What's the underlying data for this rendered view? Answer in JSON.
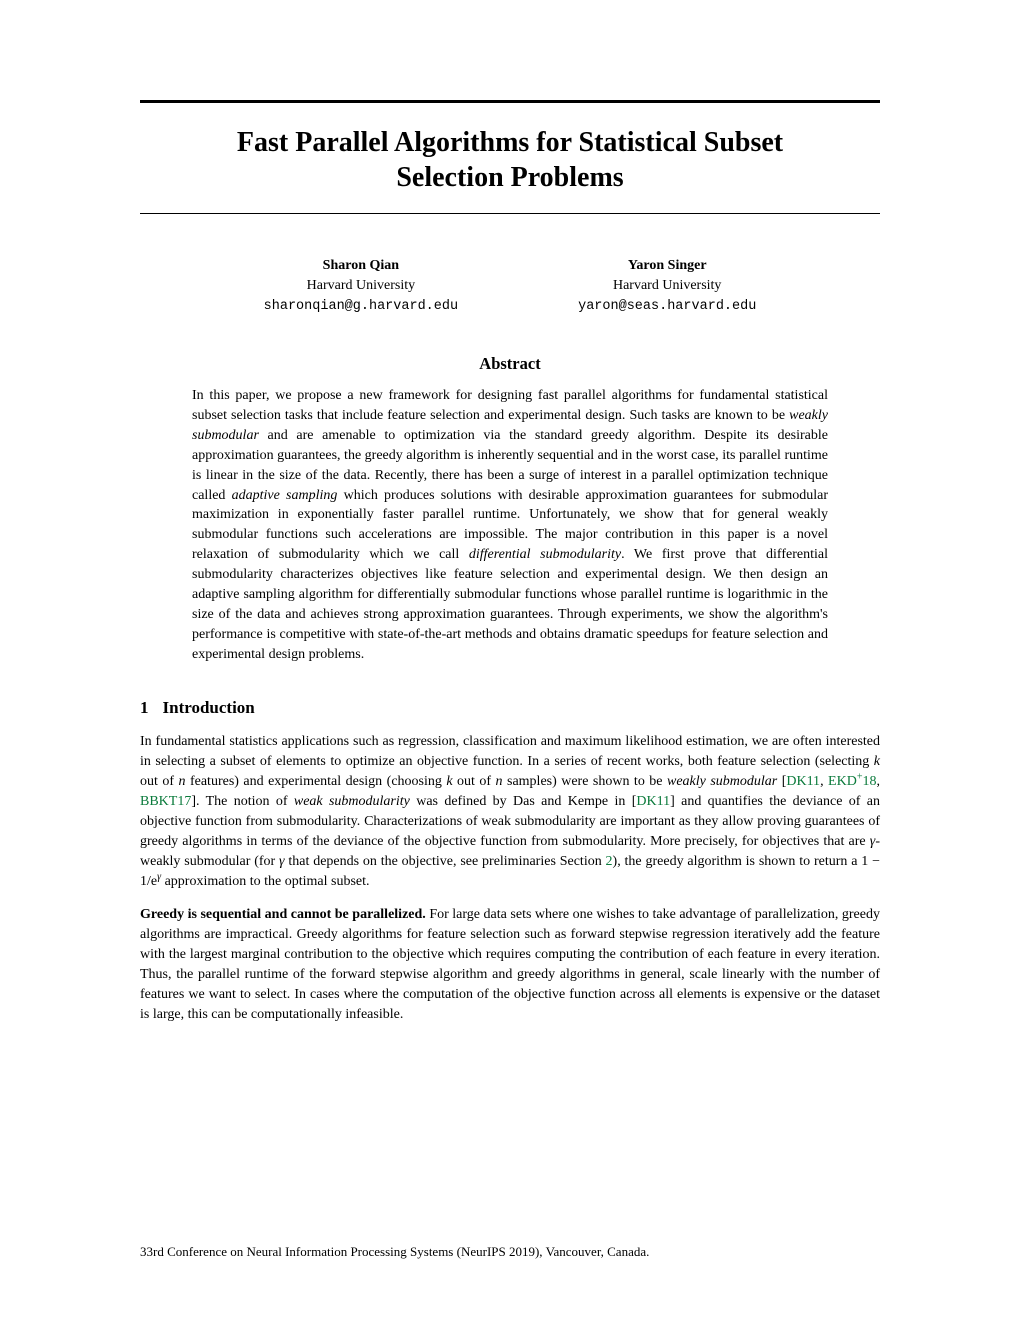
{
  "title_line1": "Fast Parallel Algorithms for Statistical Subset",
  "title_line2": "Selection Problems",
  "authors": [
    {
      "name": "Sharon Qian",
      "affiliation": "Harvard University",
      "email": "sharonqian@g.harvard.edu"
    },
    {
      "name": "Yaron Singer",
      "affiliation": "Harvard University",
      "email": "yaron@seas.harvard.edu"
    }
  ],
  "abstract_heading": "Abstract",
  "abstract_parts": {
    "a1": "In this paper, we propose a new framework for designing fast parallel algorithms for fundamental statistical subset selection tasks that include feature selection and experimental design. Such tasks are known to be ",
    "a2_ital": "weakly submodular",
    "a3": " and are amenable to optimization via the standard greedy algorithm. Despite its desirable approximation guarantees, the greedy algorithm is inherently sequential and in the worst case, its parallel runtime is linear in the size of the data. Recently, there has been a surge of interest in a parallel optimization technique called ",
    "a4_ital": "adaptive sampling",
    "a5": " which produces solutions with desirable approximation guarantees for submodular maximization in exponentially faster parallel runtime. Unfortunately, we show that for general weakly submodular functions such accelerations are impossible. The major contribution in this paper is a novel relaxation of submodularity which we call ",
    "a6_ital": "differential submodularity",
    "a7": ". We first prove that differential submodularity characterizes objectives like feature selection and experimental design. We then design an adaptive sampling algorithm for differentially submodular functions whose parallel runtime is logarithmic in the size of the data and achieves strong approximation guarantees. Through experiments, we show the algorithm's performance is competitive with state-of-the-art methods and obtains dramatic speedups for feature selection and experimental design problems."
  },
  "section1": {
    "number": "1",
    "title": "Introduction"
  },
  "intro_parts": {
    "p1a": "In fundamental statistics applications such as regression, classification and maximum likelihood estimation, we are often interested in selecting a subset of elements to optimize an objective function. In a series of recent works, both feature selection (selecting ",
    "p1b_ital": "k",
    "p1c": " out of ",
    "p1d_ital": "n",
    "p1e": " features) and experimental design (choosing ",
    "p1f_ital": "k",
    "p1g": " out of ",
    "p1h_ital": "n",
    "p1i": " samples) were shown to be ",
    "p1j_ital": "weakly submodular",
    "p1k": " [",
    "cite1": "DK11",
    "p1l": ", ",
    "cite2a": "EKD",
    "cite2sup": "+",
    "cite2b": "18",
    "p1m": ", ",
    "cite3": "BBKT17",
    "p1n": "]. The notion of ",
    "p1o_ital": "weak submodularity",
    "p1p": " was defined by Das and Kempe in [",
    "cite4": "DK11",
    "p1q": "] and quantifies the deviance of an objective function from submodularity. Characterizations of weak submodularity are important as they allow proving guarantees of greedy algorithms in terms of the deviance of the objective function from submodularity. More precisely, for objectives that are ",
    "p1r_ital": "γ",
    "p1s": "-weakly submodular (for ",
    "p1t_ital": "γ",
    "p1u": " that depends on the objective, see preliminaries Section ",
    "secref": "2",
    "p1v": "), the greedy algorithm is shown to return a ",
    "p1w": "1 − 1/e",
    "p1x_sup": "γ",
    "p1y": " approximation to the optimal subset."
  },
  "para2": {
    "runin": "Greedy is sequential and cannot be parallelized.",
    "body": "   For large data sets where one wishes to take advantage of parallelization, greedy algorithms are impractical. Greedy algorithms for feature selection such as forward stepwise regression iteratively add the feature with the largest marginal contribution to the objective which requires computing the contribution of each feature in every iteration. Thus, the parallel runtime of the forward stepwise algorithm and greedy algorithms in general, scale linearly with the number of features we want to select. In cases where the computation of the objective function across all elements is expensive or the dataset is large, this can be computationally infeasible."
  },
  "footer": "33rd Conference on Neural Information Processing Systems (NeurIPS 2019), Vancouver, Canada.",
  "colors": {
    "cite_color": "#0a7a3b",
    "text_color": "#000000",
    "background": "#ffffff"
  }
}
